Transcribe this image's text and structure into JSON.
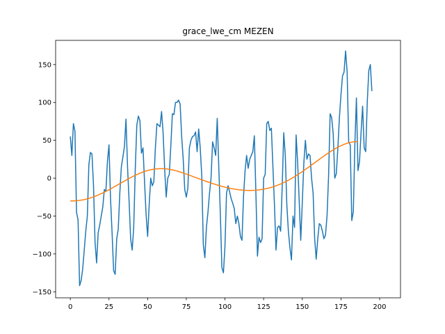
{
  "chart_data": {
    "type": "line",
    "title": "grace_lwe_cm MEZEN",
    "xlabel": "",
    "ylabel": "",
    "xlim": [
      -9.5,
      213.5
    ],
    "ylim": [
      -158,
      182
    ],
    "x_ticks": [
      0,
      25,
      50,
      75,
      100,
      125,
      150,
      175,
      200
    ],
    "y_ticks": [
      -150,
      -100,
      -50,
      0,
      50,
      100,
      150
    ],
    "grid": false,
    "series": [
      {
        "color": "#1f77b4",
        "values": [
          55,
          30,
          72,
          62,
          -45,
          -55,
          -142,
          -135,
          -120,
          -95,
          -70,
          -50,
          18,
          34,
          32,
          -10,
          -85,
          -112,
          -72,
          -62,
          -50,
          -38,
          -15,
          -17,
          22,
          44,
          -27,
          -72,
          -122,
          -127,
          -80,
          -67,
          -20,
          15,
          28,
          42,
          78,
          15,
          -30,
          -80,
          -95,
          -65,
          12,
          70,
          82,
          76,
          33,
          40,
          -5,
          -48,
          -77,
          -35,
          0,
          -10,
          -5,
          40,
          72,
          70,
          68,
          88,
          60,
          12,
          -25,
          0,
          5,
          43,
          85,
          84,
          100,
          100,
          103,
          98,
          55,
          25,
          -15,
          -25,
          -13,
          40,
          50,
          55,
          56,
          61,
          35,
          65,
          40,
          3,
          -88,
          -105,
          -65,
          -45,
          -20,
          0,
          48,
          40,
          30,
          79,
          15,
          -47,
          -118,
          -125,
          -90,
          -20,
          -10,
          -18,
          -27,
          -33,
          -40,
          -60,
          -50,
          -60,
          -77,
          -82,
          -24,
          10,
          30,
          13,
          25,
          30,
          35,
          56,
          -20,
          -103,
          -78,
          -85,
          -80,
          0,
          5,
          72,
          75,
          63,
          66,
          15,
          -35,
          -95,
          -65,
          -63,
          -70,
          -12,
          60,
          30,
          -35,
          -70,
          -92,
          -108,
          -50,
          -65,
          57,
          20,
          -30,
          -82,
          -32,
          20,
          50,
          25,
          32,
          30,
          0,
          -20,
          -80,
          -107,
          -80,
          -60,
          -62,
          -70,
          -80,
          -75,
          -50,
          3,
          85,
          80,
          58,
          0,
          6,
          40,
          80,
          110,
          135,
          140,
          168,
          140,
          48,
          44,
          -56,
          -44,
          45,
          106,
          10,
          22,
          60,
          95,
          40,
          35,
          100,
          142,
          150,
          115
        ]
      },
      {
        "color": "#ff7f0e",
        "values": [
          -30,
          -30,
          -30,
          -29.9,
          -29.8,
          -29.6,
          -29.3,
          -29,
          -28.7,
          -28.3,
          -27.8,
          -27.3,
          -26.7,
          -26.1,
          -25.4,
          -24.7,
          -23.9,
          -23.1,
          -22.3,
          -21.4,
          -20.4,
          -19.5,
          -18.5,
          -17.4,
          -16.4,
          -15.3,
          -14.2,
          -13,
          -11.9,
          -10.7,
          -9.6,
          -8.4,
          -7.2,
          -6.1,
          -4.9,
          -3.8,
          -2.6,
          -1.5,
          -0.4,
          0.7,
          1.8,
          2.8,
          3.8,
          4.7,
          5.6,
          6.5,
          7.3,
          8.1,
          8.8,
          9.5,
          10.1,
          10.6,
          11.1,
          11.5,
          11.8,
          12.1,
          12.3,
          12.5,
          12.6,
          12.6,
          12.6,
          12.5,
          12.3,
          12,
          11.7,
          11.4,
          11,
          10.5,
          10,
          9.4,
          8.8,
          8.2,
          7.5,
          6.8,
          6.1,
          5.4,
          4.7,
          3.9,
          3.2,
          2.4,
          1.6,
          0.9,
          0.1,
          -0.6,
          -1.4,
          -2.1,
          -2.8,
          -3.6,
          -4.3,
          -5,
          -5.7,
          -6.4,
          -7.1,
          -7.7,
          -8.4,
          -9,
          -9.6,
          -10.2,
          -10.8,
          -11.3,
          -11.8,
          -12.3,
          -12.8,
          -13.2,
          -13.7,
          -14,
          -14.4,
          -14.7,
          -15,
          -15.3,
          -15.5,
          -15.7,
          -15.9,
          -16,
          -16.1,
          -16.1,
          -16.2,
          -16.1,
          -16.1,
          -16,
          -15.8,
          -15.7,
          -15.4,
          -15.2,
          -14.9,
          -14.5,
          -14.1,
          -13.7,
          -13.2,
          -12.7,
          -12.1,
          -11.5,
          -10.8,
          -10.1,
          -9.3,
          -8.5,
          -7.7,
          -6.8,
          -5.8,
          -4.8,
          -3.8,
          -2.7,
          -1.6,
          -0.4,
          0.8,
          2,
          3.3,
          4.6,
          5.9,
          7.3,
          8.7,
          10.1,
          11.5,
          13,
          14.4,
          15.9,
          17.4,
          18.9,
          20.4,
          21.9,
          23.4,
          24.9,
          26.4,
          27.8,
          29.3,
          30.7,
          32.1,
          33.5,
          34.8,
          36.1,
          37.4,
          38.6,
          39.8,
          40.9,
          41.9,
          42.9,
          43.8,
          44.7,
          45.4,
          46.1,
          46.7,
          47.2,
          47.6,
          47.9,
          48.1,
          48.2,
          48.2
        ]
      }
    ]
  }
}
